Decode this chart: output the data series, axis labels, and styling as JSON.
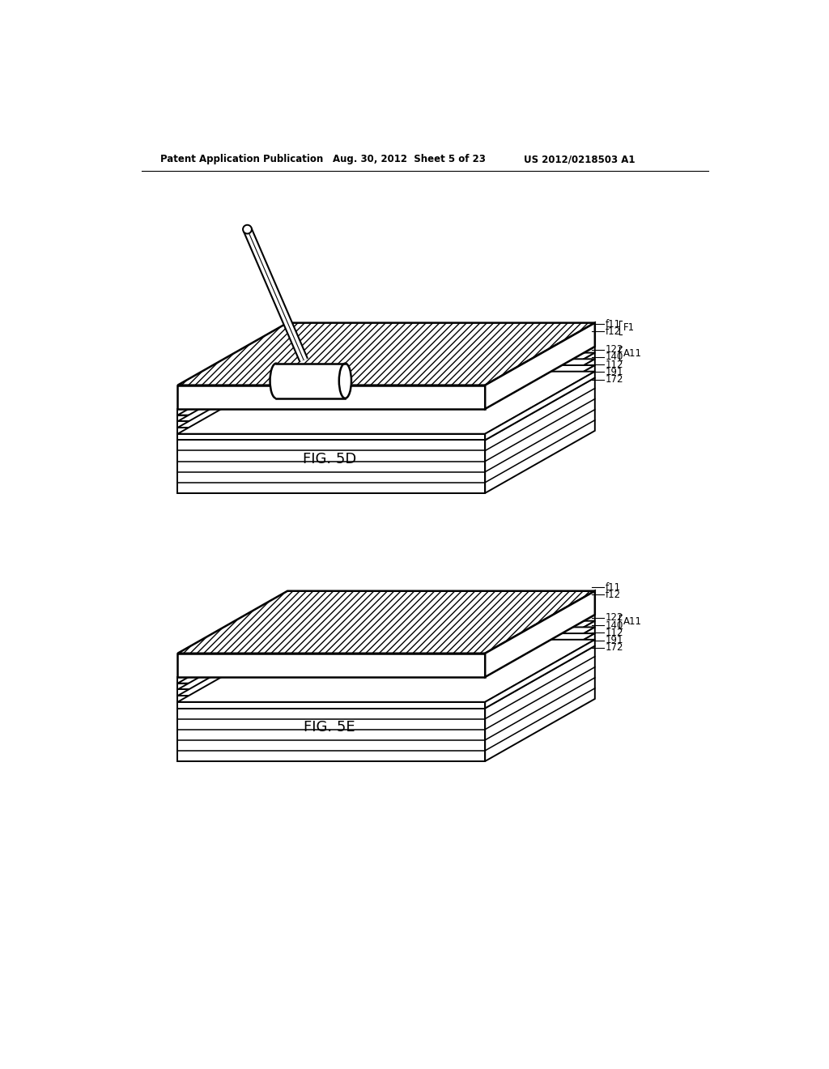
{
  "bg_color": "#ffffff",
  "header_left": "Patent Application Publication",
  "header_mid": "Aug. 30, 2012  Sheet 5 of 23",
  "header_right": "US 2012/0218503 A1",
  "fig5d_label": "FIG. 5D",
  "fig5e_label": "FIG. 5E",
  "lw": 1.4,
  "lw_thick": 1.8,
  "hatch_density": "////",
  "label_fontsize": 8.5,
  "fig_label_fontsize": 13,
  "header_fontsize": 8.5
}
